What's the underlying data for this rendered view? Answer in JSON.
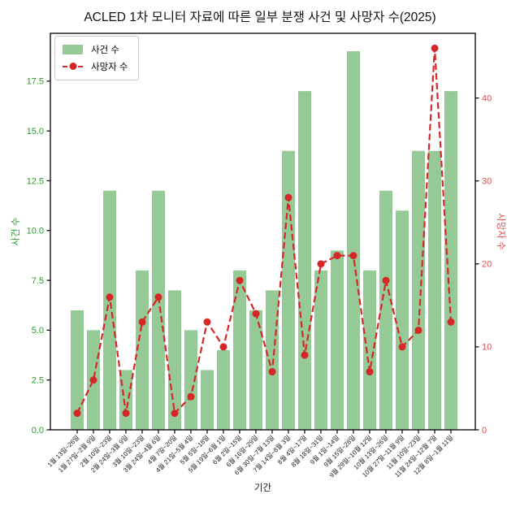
{
  "chart_data": {
    "type": "bar+line",
    "title": "ACLED 1차 모니터 자료에 따른 일부 분쟁 사건 및 사망자 수(2025)",
    "xlabel": "기간",
    "ylabel_left": "사건 수",
    "ylabel_right": "사망자 수",
    "grid": false,
    "legend_position": "upper left",
    "categories": [
      "1월 13일~26일",
      "1월 27일~2월 9일",
      "2월 10일~23일",
      "2월 24일~3월 9일",
      "3월 10일~23일",
      "3월 24일~4월 6일",
      "4월 7일~20일",
      "4월 21일~5월 4일",
      "5월 5일~18일",
      "5월 19일~6월 1일",
      "6월 2일~15일",
      "6월 16일~29일",
      "6월 30일~7월 13일",
      "7월 14일~8월 3일",
      "8월 4일~17일",
      "8월 18일~31일",
      "9월 1일~14일",
      "9월 15일~28일",
      "9월 29일~10월 12일",
      "10월 13일~26일",
      "10월 27일~11월 9일",
      "11월 10일~23일",
      "11월 24일~12월 7일",
      "12월 8일~1월 11일"
    ],
    "series": [
      {
        "name": "사건 수",
        "type": "bar",
        "axis": "left",
        "color": "#95c995",
        "values": [
          6,
          5,
          12,
          3,
          8,
          12,
          7,
          5,
          3,
          4,
          8,
          6,
          7,
          14,
          17,
          8,
          9,
          19,
          8,
          12,
          11,
          14,
          14,
          17
        ]
      },
      {
        "name": "사망자 수",
        "type": "line",
        "axis": "right",
        "color": "#d62728",
        "linestyle": "dashed",
        "marker": "circle",
        "values": [
          2,
          6,
          16,
          2,
          13,
          16,
          2,
          4,
          13,
          10,
          18,
          14,
          7,
          28,
          9,
          20,
          21,
          21,
          7,
          18,
          10,
          12,
          46,
          13
        ]
      }
    ],
    "y_left": {
      "ticks": [
        0,
        2.5,
        5,
        7.5,
        10,
        12.5,
        15,
        17.5
      ],
      "tick_labels": [
        "0.0",
        "2.5",
        "5.0",
        "7.5",
        "10.0",
        "12.5",
        "15.0",
        "17.5"
      ],
      "ylim": [
        0,
        19.9
      ],
      "color": "#2a9d2a"
    },
    "y_right": {
      "ticks": [
        0,
        10,
        20,
        30,
        40
      ],
      "tick_labels": [
        "0",
        "10",
        "20",
        "30",
        "40"
      ],
      "ylim": [
        0,
        47.8
      ],
      "color": "#e14b4b"
    }
  }
}
